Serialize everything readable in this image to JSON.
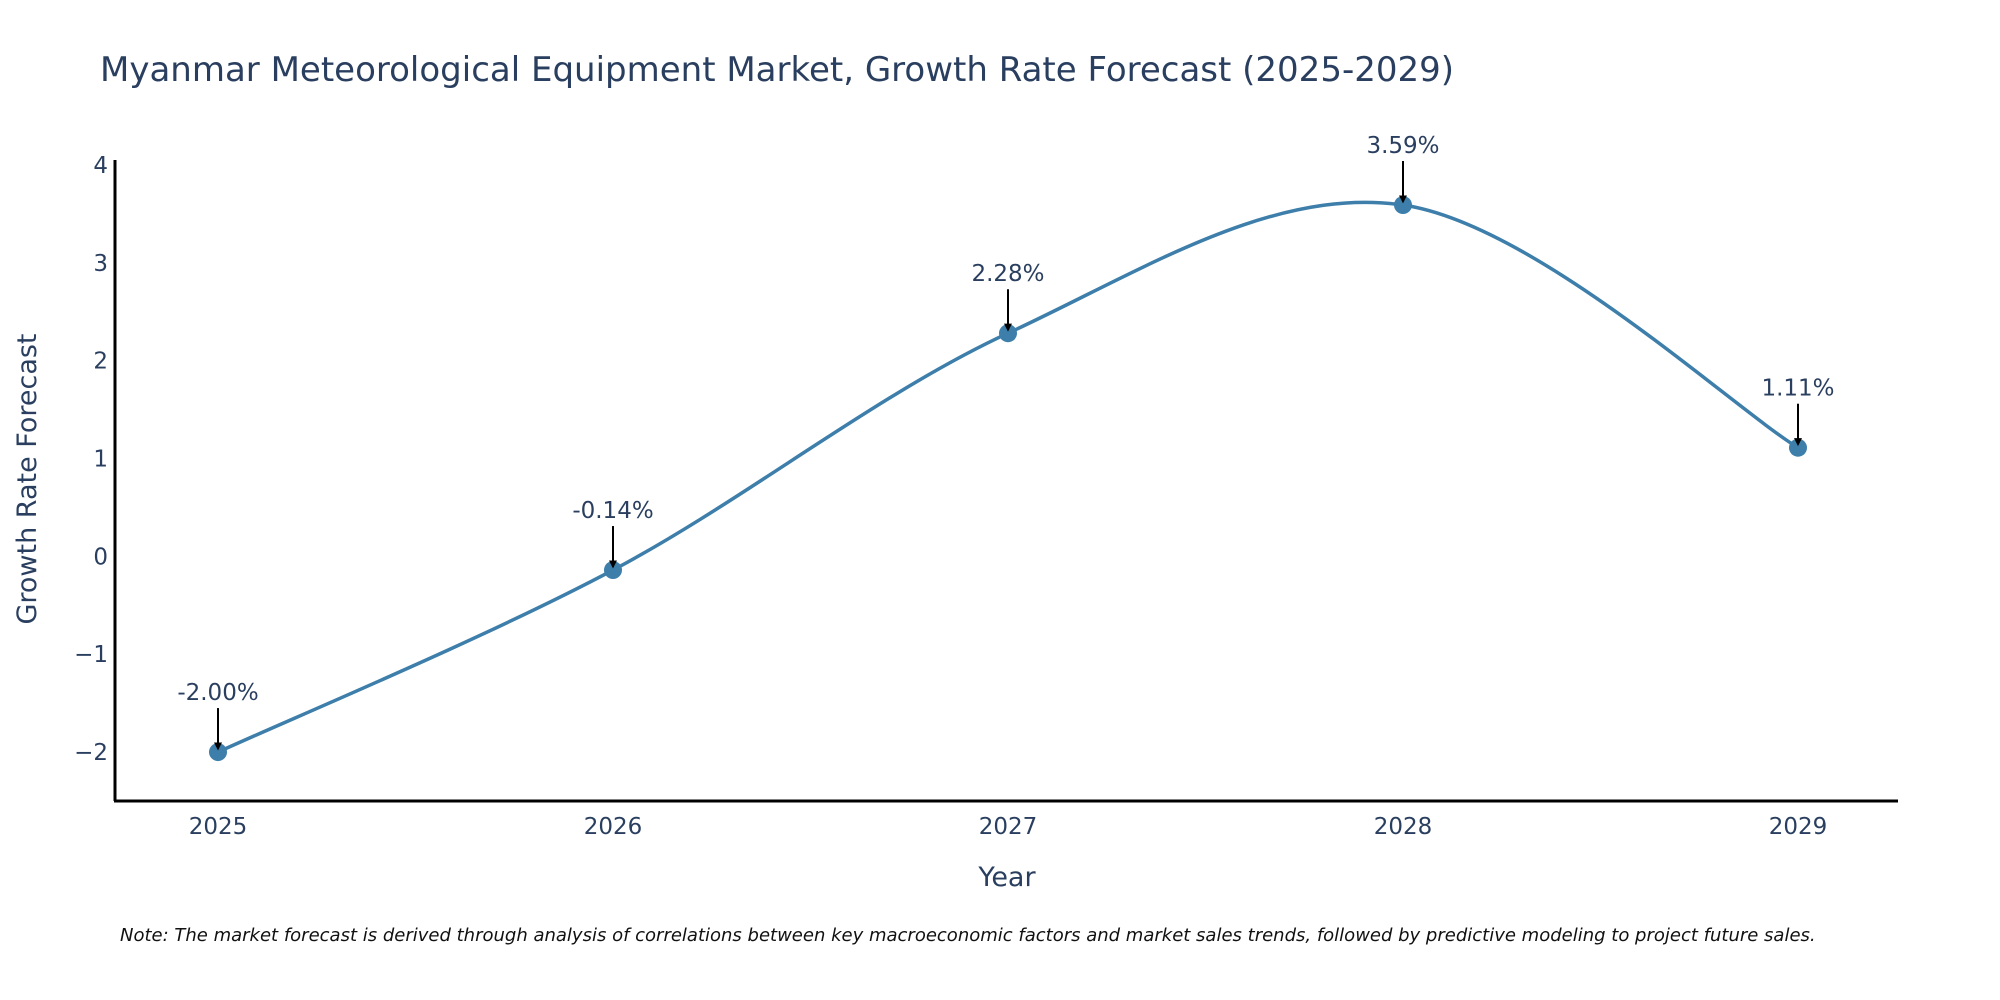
{
  "chart_data": {
    "type": "line",
    "title": "Myanmar Meteorological Equipment Market, Growth Rate Forecast (2025-2029)",
    "xlabel": "Year",
    "ylabel": "Growth Rate Forecast",
    "x": [
      "2025",
      "2026",
      "2027",
      "2028",
      "2029"
    ],
    "series": [
      {
        "name": "Growth Rate Forecast",
        "values": [
          -2.0,
          -0.14,
          2.28,
          3.59,
          1.11
        ],
        "labels": [
          "-2.00%",
          "-0.14%",
          "2.28%",
          "3.59%",
          "1.11%"
        ]
      }
    ],
    "ylim": [
      -2.5,
      4.05
    ],
    "yticks": [
      -2,
      -1,
      0,
      1,
      2,
      3,
      4
    ],
    "ytick_labels": [
      "−2",
      "−1",
      "0",
      "1",
      "2",
      "3",
      "4"
    ],
    "grid": false,
    "line_shape": "spline",
    "line_color": "#3d7eaa",
    "marker_color": "#3d7eaa",
    "note": "Note: The market forecast is derived through analysis of correlations between key macroeconomic factors and market sales trends, followed by predictive modeling to project future sales."
  }
}
